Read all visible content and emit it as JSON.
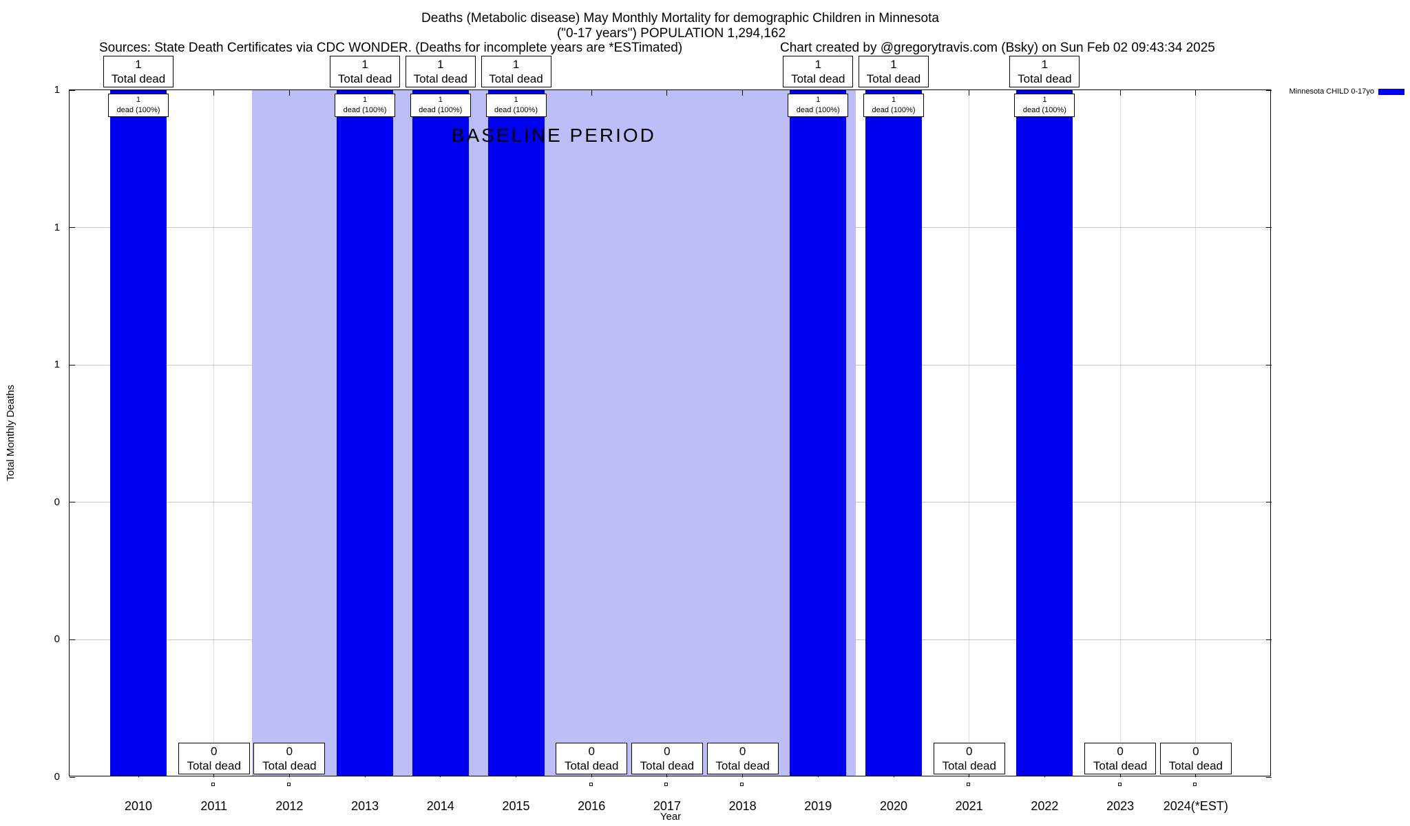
{
  "header": {
    "title_line1": "Deaths (Metabolic disease) May Monthly Mortality for demographic Children in Minnesota",
    "title_line2": "(\"0-17 years\") POPULATION 1,294,162",
    "sources": "Sources: State Death Certificates via CDC WONDER. (Deaths for incomplete years are *ESTimated)",
    "credit": "Chart created by @gregorytravis.com (Bsky) on Sun Feb 02 09:43:34 2025"
  },
  "legend": {
    "label": "Minnesota CHILD 0-17yo",
    "swatch_color": "#0000f0"
  },
  "chart_data": {
    "type": "bar",
    "title": "Deaths (Metabolic disease) May Monthly Mortality for demographic Children in Minnesota (\"0-17 years\") POPULATION 1,294,162",
    "xlabel": "Year",
    "ylabel": "Total Monthly Deaths",
    "ylim": [
      0,
      1
    ],
    "grid": true,
    "legend_position": "top-right",
    "bar_color": "#0000f0",
    "series_name": "Minnesota CHILD 0-17yo",
    "yticks": [
      {
        "value": 0.0,
        "label": "0"
      },
      {
        "value": 0.2,
        "label": "0"
      },
      {
        "value": 0.4,
        "label": "0"
      },
      {
        "value": 0.6,
        "label": "1"
      },
      {
        "value": 0.8,
        "label": "1"
      },
      {
        "value": 1.0,
        "label": "1"
      }
    ],
    "baseline_region": {
      "label": "BASELINE PERIOD",
      "from_category": "2012",
      "to_category": "2019",
      "color": "#bdbdf7"
    },
    "years": [
      {
        "label": "2010",
        "value": 1,
        "total_line1": "1",
        "total_line2": "Total dead",
        "bar_line1": "1",
        "bar_line2": "dead (100%)"
      },
      {
        "label": "2011",
        "value": 0,
        "total_line1": "0",
        "total_line2": "Total dead"
      },
      {
        "label": "2012",
        "value": 0,
        "total_line1": "0",
        "total_line2": "Total dead"
      },
      {
        "label": "2013",
        "value": 1,
        "total_line1": "1",
        "total_line2": "Total dead",
        "bar_line1": "1",
        "bar_line2": "dead (100%)"
      },
      {
        "label": "2014",
        "value": 1,
        "total_line1": "1",
        "total_line2": "Total dead",
        "bar_line1": "1",
        "bar_line2": "dead (100%)"
      },
      {
        "label": "2015",
        "value": 1,
        "total_line1": "1",
        "total_line2": "Total dead",
        "bar_line1": "1",
        "bar_line2": "dead (100%)"
      },
      {
        "label": "2016",
        "value": 0,
        "total_line1": "0",
        "total_line2": "Total dead"
      },
      {
        "label": "2017",
        "value": 0,
        "total_line1": "0",
        "total_line2": "Total dead"
      },
      {
        "label": "2018",
        "value": 0,
        "total_line1": "0",
        "total_line2": "Total dead"
      },
      {
        "label": "2019",
        "value": 1,
        "total_line1": "1",
        "total_line2": "Total dead",
        "bar_line1": "1",
        "bar_line2": "dead (100%)"
      },
      {
        "label": "2020",
        "value": 1,
        "total_line1": "1",
        "total_line2": "Total dead",
        "bar_line1": "1",
        "bar_line2": "dead (100%)"
      },
      {
        "label": "2021",
        "value": 0,
        "total_line1": "0",
        "total_line2": "Total dead"
      },
      {
        "label": "2022",
        "value": 1,
        "total_line1": "1",
        "total_line2": "Total dead",
        "bar_line1": "1",
        "bar_line2": "dead (100%)"
      },
      {
        "label": "2023",
        "value": 0,
        "total_line1": "0",
        "total_line2": "Total dead"
      },
      {
        "label": "2024(*EST)",
        "value": 0,
        "total_line1": "0",
        "total_line2": "Total dead"
      }
    ]
  }
}
